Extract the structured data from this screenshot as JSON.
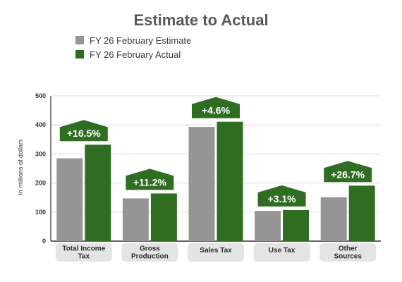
{
  "colors": {
    "estimate": "#959595",
    "actual": "#2f6e22",
    "badge": "#2f6e22",
    "category_pill": "#e4e4e4",
    "grid": "#dcdcdc",
    "title": "#595959"
  },
  "chart_data": {
    "type": "bar",
    "title": "Estimate to Actual",
    "xlabel": "",
    "ylabel": "In millions of dollars",
    "ylim": [
      0,
      500
    ],
    "yticks": [
      "0",
      "100",
      "200",
      "300",
      "400",
      "500"
    ],
    "grid": true,
    "legend_position": "top-left",
    "categories": [
      [
        "Total Income",
        "Tax"
      ],
      [
        "Gross",
        "Production"
      ],
      [
        "Sales Tax"
      ],
      [
        "Use Tax"
      ],
      [
        "Other",
        "Sources"
      ]
    ],
    "series": [
      {
        "name": "FY 26 February Estimate",
        "values": [
          285,
          147,
          393,
          104,
          151
        ]
      },
      {
        "name": "FY 26 February Actual",
        "values": [
          332,
          164,
          411,
          107,
          191
        ]
      }
    ],
    "annotations": [
      "+16.5%",
      "+11.2%",
      "+4.6%",
      "+3.1%",
      "+26.7%"
    ]
  }
}
